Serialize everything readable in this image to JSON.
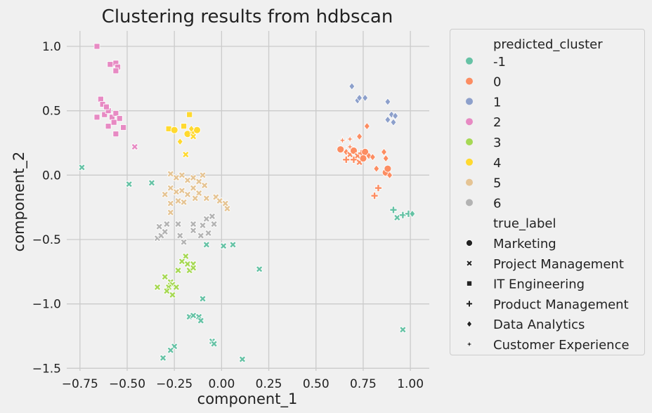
{
  "chart_data": {
    "type": "scatter",
    "title": "Clustering results from hdbscan",
    "xlabel": "component_1",
    "ylabel": "component_2",
    "xlim": [
      -0.82,
      1.1
    ],
    "ylim": [
      -1.52,
      1.12
    ],
    "xticks": [
      -0.75,
      -0.5,
      -0.25,
      0.0,
      0.25,
      0.5,
      0.75,
      1.0
    ],
    "xtick_labels": [
      "−0.75",
      "−0.50",
      "−0.25",
      "0.00",
      "0.25",
      "0.50",
      "0.75",
      "1.00"
    ],
    "yticks": [
      -1.5,
      -1.0,
      -0.5,
      0.0,
      0.5,
      1.0
    ],
    "ytick_labels": [
      "−1.5",
      "−1.0",
      "−0.5",
      "0.0",
      "0.5",
      "1.0"
    ],
    "grid": true,
    "legend_position": "outside-right",
    "hue_title": "predicted_cluster",
    "style_title": "true_label",
    "clusters": [
      {
        "label": "-1",
        "color": "#66c2a5"
      },
      {
        "label": "0",
        "color": "#fc8d62"
      },
      {
        "label": "1",
        "color": "#8da0cb"
      },
      {
        "label": "2",
        "color": "#e78ac3"
      },
      {
        "label": "3",
        "color": "#a6d854"
      },
      {
        "label": "4",
        "color": "#ffd92f"
      },
      {
        "label": "5",
        "color": "#e5c494"
      },
      {
        "label": "6",
        "color": "#b3b3b3"
      }
    ],
    "true_labels": [
      {
        "label": "Marketing",
        "marker": "circle"
      },
      {
        "label": "Project Management",
        "marker": "x"
      },
      {
        "label": "IT Engineering",
        "marker": "square"
      },
      {
        "label": "Product Management",
        "marker": "plus"
      },
      {
        "label": "Data Analytics",
        "marker": "diamond"
      },
      {
        "label": "Customer Experience",
        "marker": "star"
      }
    ],
    "points": [
      {
        "x": 0.63,
        "y": 0.2,
        "cluster": "0",
        "label": "Marketing"
      },
      {
        "x": 0.66,
        "y": 0.18,
        "cluster": "0",
        "label": "Data Analytics"
      },
      {
        "x": 0.68,
        "y": 0.16,
        "cluster": "0",
        "label": "Project Management"
      },
      {
        "x": 0.7,
        "y": 0.19,
        "cluster": "0",
        "label": "Marketing"
      },
      {
        "x": 0.72,
        "y": 0.15,
        "cluster": "0",
        "label": "Project Management"
      },
      {
        "x": 0.74,
        "y": 0.17,
        "cluster": "0",
        "label": "Product Management"
      },
      {
        "x": 0.76,
        "y": 0.18,
        "cluster": "0",
        "label": "Marketing"
      },
      {
        "x": 0.78,
        "y": 0.15,
        "cluster": "0",
        "label": "Data Analytics"
      },
      {
        "x": 0.7,
        "y": 0.12,
        "cluster": "0",
        "label": "Product Management"
      },
      {
        "x": 0.73,
        "y": 0.1,
        "cluster": "0",
        "label": "Project Management"
      },
      {
        "x": 0.66,
        "y": 0.12,
        "cluster": "0",
        "label": "Product Management"
      },
      {
        "x": 0.8,
        "y": 0.14,
        "cluster": "0",
        "label": "Data Analytics"
      },
      {
        "x": 0.68,
        "y": 0.22,
        "cluster": "0",
        "label": "Customer Experience"
      },
      {
        "x": 0.64,
        "y": 0.27,
        "cluster": "0",
        "label": "Customer Experience"
      },
      {
        "x": 0.68,
        "y": 0.28,
        "cluster": "0",
        "label": "Customer Experience"
      },
      {
        "x": 0.73,
        "y": 0.3,
        "cluster": "0",
        "label": "Data Analytics"
      },
      {
        "x": 0.77,
        "y": 0.38,
        "cluster": "0",
        "label": "Data Analytics"
      },
      {
        "x": 0.75,
        "y": 0.13,
        "cluster": "0",
        "label": "Marketing"
      },
      {
        "x": 0.82,
        "y": 0.05,
        "cluster": "0",
        "label": "Data Analytics"
      },
      {
        "x": 0.87,
        "y": 0.02,
        "cluster": "0",
        "label": "Marketing"
      },
      {
        "x": 0.88,
        "y": 0.05,
        "cluster": "0",
        "label": "Marketing"
      },
      {
        "x": 0.89,
        "y": 0.0,
        "cluster": "0",
        "label": "Data Analytics"
      },
      {
        "x": 0.83,
        "y": -0.1,
        "cluster": "0",
        "label": "Product Management"
      },
      {
        "x": 0.81,
        "y": -0.16,
        "cluster": "0",
        "label": "Product Management"
      },
      {
        "x": 0.86,
        "y": 0.18,
        "cluster": "0",
        "label": "Data Analytics"
      },
      {
        "x": 0.87,
        "y": 0.13,
        "cluster": "0",
        "label": "Data Analytics"
      },
      {
        "x": 0.69,
        "y": 0.69,
        "cluster": "1",
        "label": "Data Analytics"
      },
      {
        "x": 0.72,
        "y": 0.58,
        "cluster": "1",
        "label": "Data Analytics"
      },
      {
        "x": 0.73,
        "y": 0.6,
        "cluster": "1",
        "label": "Data Analytics"
      },
      {
        "x": 0.76,
        "y": 0.6,
        "cluster": "1",
        "label": "Data Analytics"
      },
      {
        "x": 0.88,
        "y": 0.57,
        "cluster": "1",
        "label": "Data Analytics"
      },
      {
        "x": 0.88,
        "y": 0.43,
        "cluster": "1",
        "label": "Data Analytics"
      },
      {
        "x": 0.9,
        "y": 0.47,
        "cluster": "1",
        "label": "Data Analytics"
      },
      {
        "x": 0.92,
        "y": 0.46,
        "cluster": "1",
        "label": "Data Analytics"
      },
      {
        "x": 0.91,
        "y": 0.41,
        "cluster": "1",
        "label": "Data Analytics"
      },
      {
        "x": 0.91,
        "y": -0.27,
        "cluster": "-1",
        "label": "Product Management"
      },
      {
        "x": 0.93,
        "y": -0.33,
        "cluster": "-1",
        "label": "Project Management"
      },
      {
        "x": 0.96,
        "y": -0.31,
        "cluster": "-1",
        "label": "Product Management"
      },
      {
        "x": 0.99,
        "y": -0.3,
        "cluster": "-1",
        "label": "Product Management"
      },
      {
        "x": 1.01,
        "y": -0.3,
        "cluster": "-1",
        "label": "Data Analytics"
      },
      {
        "x": 0.96,
        "y": -1.2,
        "cluster": "-1",
        "label": "Project Management"
      },
      {
        "x": -0.66,
        "y": 1.0,
        "cluster": "2",
        "label": "IT Engineering"
      },
      {
        "x": -0.59,
        "y": 0.86,
        "cluster": "2",
        "label": "IT Engineering"
      },
      {
        "x": -0.56,
        "y": 0.87,
        "cluster": "2",
        "label": "IT Engineering"
      },
      {
        "x": -0.55,
        "y": 0.84,
        "cluster": "2",
        "label": "IT Engineering"
      },
      {
        "x": -0.56,
        "y": 0.81,
        "cluster": "2",
        "label": "IT Engineering"
      },
      {
        "x": -0.64,
        "y": 0.59,
        "cluster": "2",
        "label": "IT Engineering"
      },
      {
        "x": -0.63,
        "y": 0.55,
        "cluster": "2",
        "label": "IT Engineering"
      },
      {
        "x": -0.66,
        "y": 0.45,
        "cluster": "2",
        "label": "IT Engineering"
      },
      {
        "x": -0.62,
        "y": 0.47,
        "cluster": "2",
        "label": "IT Engineering"
      },
      {
        "x": -0.6,
        "y": 0.5,
        "cluster": "2",
        "label": "IT Engineering"
      },
      {
        "x": -0.58,
        "y": 0.45,
        "cluster": "2",
        "label": "IT Engineering"
      },
      {
        "x": -0.56,
        "y": 0.48,
        "cluster": "2",
        "label": "IT Engineering"
      },
      {
        "x": -0.54,
        "y": 0.44,
        "cluster": "2",
        "label": "IT Engineering"
      },
      {
        "x": -0.6,
        "y": 0.38,
        "cluster": "2",
        "label": "IT Engineering"
      },
      {
        "x": -0.56,
        "y": 0.32,
        "cluster": "2",
        "label": "IT Engineering"
      },
      {
        "x": -0.52,
        "y": 0.37,
        "cluster": "2",
        "label": "IT Engineering"
      },
      {
        "x": -0.61,
        "y": 0.53,
        "cluster": "2",
        "label": "IT Engineering"
      },
      {
        "x": -0.57,
        "y": 0.41,
        "cluster": "2",
        "label": "IT Engineering"
      },
      {
        "x": -0.46,
        "y": 0.22,
        "cluster": "2",
        "label": "Project Management"
      },
      {
        "x": -0.74,
        "y": 0.06,
        "cluster": "-1",
        "label": "Project Management"
      },
      {
        "x": -0.49,
        "y": -0.07,
        "cluster": "-1",
        "label": "Project Management"
      },
      {
        "x": -0.37,
        "y": -0.06,
        "cluster": "-1",
        "label": "Project Management"
      },
      {
        "x": -0.28,
        "y": 0.36,
        "cluster": "4",
        "label": "IT Engineering"
      },
      {
        "x": -0.25,
        "y": 0.35,
        "cluster": "4",
        "label": "Marketing"
      },
      {
        "x": -0.2,
        "y": 0.38,
        "cluster": "4",
        "label": "IT Engineering"
      },
      {
        "x": -0.17,
        "y": 0.47,
        "cluster": "4",
        "label": "IT Engineering"
      },
      {
        "x": -0.18,
        "y": 0.32,
        "cluster": "4",
        "label": "Marketing"
      },
      {
        "x": -0.15,
        "y": 0.34,
        "cluster": "4",
        "label": "Marketing"
      },
      {
        "x": -0.13,
        "y": 0.35,
        "cluster": "4",
        "label": "Marketing"
      },
      {
        "x": -0.15,
        "y": 0.3,
        "cluster": "4",
        "label": "Project Management"
      },
      {
        "x": -0.22,
        "y": 0.26,
        "cluster": "4",
        "label": "Data Analytics"
      },
      {
        "x": -0.19,
        "y": 0.16,
        "cluster": "4",
        "label": "Project Management"
      },
      {
        "x": -0.16,
        "y": 0.36,
        "cluster": "4",
        "label": "Data Analytics"
      },
      {
        "x": -0.27,
        "y": 0.01,
        "cluster": "5",
        "label": "Project Management"
      },
      {
        "x": -0.24,
        "y": -0.02,
        "cluster": "5",
        "label": "Project Management"
      },
      {
        "x": -0.21,
        "y": 0.0,
        "cluster": "5",
        "label": "Project Management"
      },
      {
        "x": -0.18,
        "y": -0.04,
        "cluster": "5",
        "label": "Project Management"
      },
      {
        "x": -0.15,
        "y": -0.02,
        "cluster": "5",
        "label": "Project Management"
      },
      {
        "x": -0.12,
        "y": -0.05,
        "cluster": "5",
        "label": "Project Management"
      },
      {
        "x": -0.09,
        "y": -0.08,
        "cluster": "5",
        "label": "Project Management"
      },
      {
        "x": -0.3,
        "y": -0.15,
        "cluster": "5",
        "label": "Project Management"
      },
      {
        "x": -0.27,
        "y": -0.1,
        "cluster": "5",
        "label": "Project Management"
      },
      {
        "x": -0.24,
        "y": -0.13,
        "cluster": "5",
        "label": "Project Management"
      },
      {
        "x": -0.21,
        "y": -0.12,
        "cluster": "5",
        "label": "Project Management"
      },
      {
        "x": -0.18,
        "y": -0.15,
        "cluster": "5",
        "label": "Project Management"
      },
      {
        "x": -0.15,
        "y": -0.1,
        "cluster": "5",
        "label": "Project Management"
      },
      {
        "x": -0.12,
        "y": -0.14,
        "cluster": "5",
        "label": "Project Management"
      },
      {
        "x": -0.27,
        "y": -0.22,
        "cluster": "5",
        "label": "Project Management"
      },
      {
        "x": -0.23,
        "y": -0.2,
        "cluster": "5",
        "label": "Project Management"
      },
      {
        "x": -0.2,
        "y": -0.21,
        "cluster": "5",
        "label": "Project Management"
      },
      {
        "x": -0.27,
        "y": -0.29,
        "cluster": "5",
        "label": "Project Management"
      },
      {
        "x": -0.14,
        "y": -0.18,
        "cluster": "5",
        "label": "Project Management"
      },
      {
        "x": -0.08,
        "y": -0.18,
        "cluster": "5",
        "label": "Project Management"
      },
      {
        "x": -0.03,
        "y": -0.17,
        "cluster": "5",
        "label": "Project Management"
      },
      {
        "x": -0.01,
        "y": -0.2,
        "cluster": "5",
        "label": "Project Management"
      },
      {
        "x": 0.02,
        "y": -0.22,
        "cluster": "5",
        "label": "Project Management"
      },
      {
        "x": 0.03,
        "y": -0.26,
        "cluster": "5",
        "label": "Project Management"
      },
      {
        "x": -0.1,
        "y": 0.0,
        "cluster": "5",
        "label": "Project Management"
      },
      {
        "x": -0.34,
        "y": -0.49,
        "cluster": "6",
        "label": "Project Management"
      },
      {
        "x": -0.32,
        "y": -0.47,
        "cluster": "6",
        "label": "Project Management"
      },
      {
        "x": -0.3,
        "y": -0.44,
        "cluster": "6",
        "label": "Project Management"
      },
      {
        "x": -0.33,
        "y": -0.4,
        "cluster": "6",
        "label": "Project Management"
      },
      {
        "x": -0.29,
        "y": -0.38,
        "cluster": "6",
        "label": "Project Management"
      },
      {
        "x": -0.23,
        "y": -0.38,
        "cluster": "6",
        "label": "Project Management"
      },
      {
        "x": -0.22,
        "y": -0.47,
        "cluster": "6",
        "label": "Project Management"
      },
      {
        "x": -0.15,
        "y": -0.38,
        "cluster": "6",
        "label": "Project Management"
      },
      {
        "x": -0.15,
        "y": -0.43,
        "cluster": "6",
        "label": "Project Management"
      },
      {
        "x": -0.1,
        "y": -0.39,
        "cluster": "6",
        "label": "Project Management"
      },
      {
        "x": -0.08,
        "y": -0.34,
        "cluster": "6",
        "label": "Project Management"
      },
      {
        "x": -0.05,
        "y": -0.32,
        "cluster": "6",
        "label": "Project Management"
      },
      {
        "x": -0.04,
        "y": -0.38,
        "cluster": "6",
        "label": "Project Management"
      },
      {
        "x": -0.07,
        "y": -0.45,
        "cluster": "6",
        "label": "Project Management"
      },
      {
        "x": -0.11,
        "y": -0.47,
        "cluster": "6",
        "label": "Project Management"
      },
      {
        "x": -0.2,
        "y": -0.52,
        "cluster": "6",
        "label": "Project Management"
      },
      {
        "x": -0.08,
        "y": -0.54,
        "cluster": "-1",
        "label": "Project Management"
      },
      {
        "x": 0.01,
        "y": -0.55,
        "cluster": "-1",
        "label": "Project Management"
      },
      {
        "x": 0.06,
        "y": -0.54,
        "cluster": "-1",
        "label": "Project Management"
      },
      {
        "x": 0.2,
        "y": -0.73,
        "cluster": "-1",
        "label": "Project Management"
      },
      {
        "x": -0.19,
        "y": -0.63,
        "cluster": "3",
        "label": "Project Management"
      },
      {
        "x": -0.21,
        "y": -0.67,
        "cluster": "3",
        "label": "Project Management"
      },
      {
        "x": -0.18,
        "y": -0.69,
        "cluster": "3",
        "label": "Project Management"
      },
      {
        "x": -0.15,
        "y": -0.69,
        "cluster": "3",
        "label": "Project Management"
      },
      {
        "x": -0.17,
        "y": -0.74,
        "cluster": "3",
        "label": "Project Management"
      },
      {
        "x": -0.23,
        "y": -0.74,
        "cluster": "3",
        "label": "Project Management"
      },
      {
        "x": -0.15,
        "y": -0.72,
        "cluster": "3",
        "label": "Project Management"
      },
      {
        "x": -0.3,
        "y": -0.79,
        "cluster": "3",
        "label": "Project Management"
      },
      {
        "x": -0.27,
        "y": -0.83,
        "cluster": "3",
        "label": "Project Management"
      },
      {
        "x": -0.26,
        "y": -0.85,
        "cluster": "3",
        "label": "Project Management"
      },
      {
        "x": -0.28,
        "y": -0.87,
        "cluster": "3",
        "label": "Project Management"
      },
      {
        "x": -0.34,
        "y": -0.87,
        "cluster": "3",
        "label": "Project Management"
      },
      {
        "x": -0.24,
        "y": -0.87,
        "cluster": "3",
        "label": "Project Management"
      },
      {
        "x": -0.29,
        "y": -0.9,
        "cluster": "3",
        "label": "Project Management"
      },
      {
        "x": -0.26,
        "y": -0.93,
        "cluster": "3",
        "label": "Project Management"
      },
      {
        "x": -0.1,
        "y": -0.96,
        "cluster": "-1",
        "label": "Project Management"
      },
      {
        "x": -0.17,
        "y": -1.1,
        "cluster": "-1",
        "label": "Project Management"
      },
      {
        "x": -0.15,
        "y": -1.09,
        "cluster": "-1",
        "label": "Project Management"
      },
      {
        "x": -0.12,
        "y": -1.1,
        "cluster": "-1",
        "label": "Project Management"
      },
      {
        "x": -0.11,
        "y": -1.13,
        "cluster": "-1",
        "label": "Project Management"
      },
      {
        "x": -0.05,
        "y": -1.29,
        "cluster": "-1",
        "label": "Project Management"
      },
      {
        "x": -0.04,
        "y": -1.31,
        "cluster": "-1",
        "label": "Project Management"
      },
      {
        "x": -0.25,
        "y": -1.33,
        "cluster": "-1",
        "label": "Project Management"
      },
      {
        "x": -0.27,
        "y": -1.36,
        "cluster": "-1",
        "label": "Project Management"
      },
      {
        "x": -0.31,
        "y": -1.42,
        "cluster": "-1",
        "label": "Project Management"
      },
      {
        "x": 0.11,
        "y": -1.43,
        "cluster": "-1",
        "label": "Project Management"
      }
    ]
  }
}
